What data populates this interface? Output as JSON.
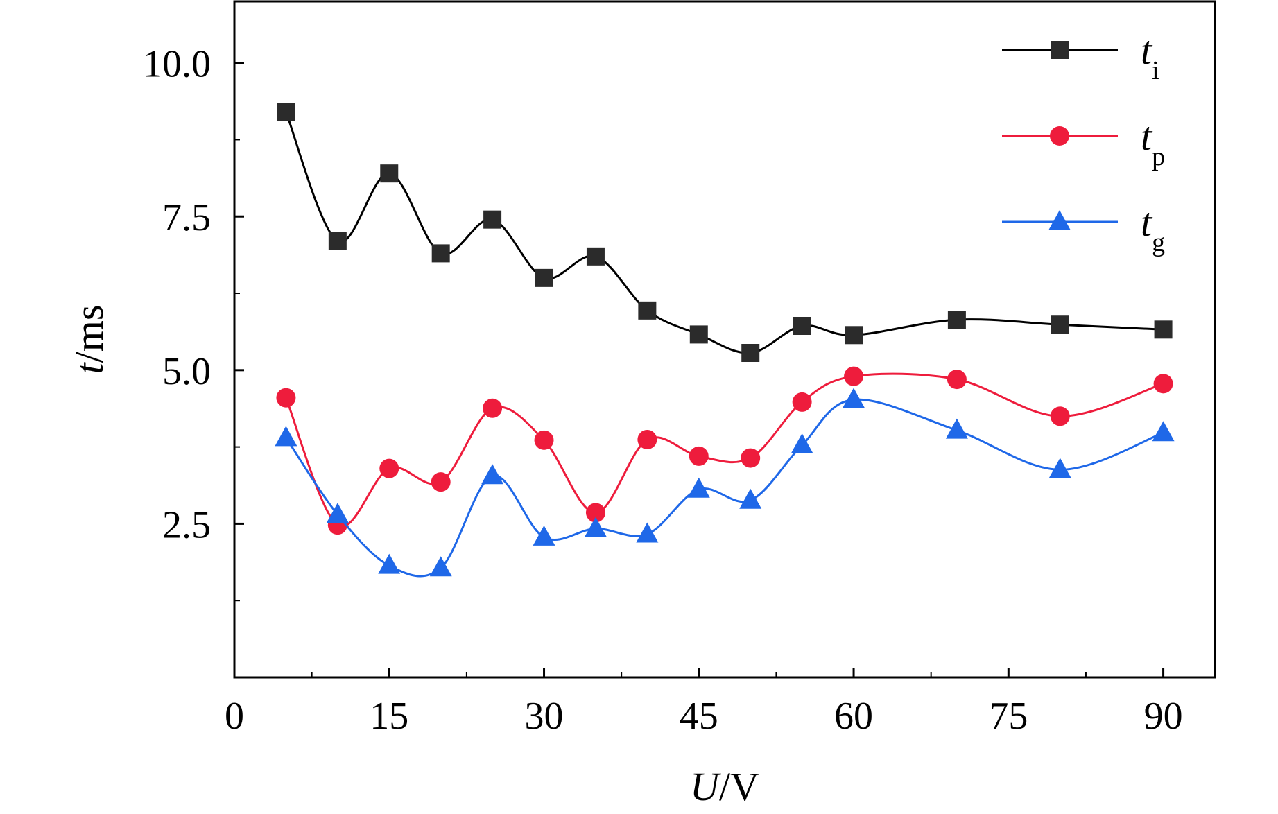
{
  "chart_data": {
    "type": "line",
    "xlabel": {
      "italic": "U",
      "rest": "/V"
    },
    "ylabel": {
      "italic": "t",
      "rest": "/ms"
    },
    "xlim": [
      0,
      95
    ],
    "ylim": [
      0,
      11
    ],
    "x_ticks": [
      0,
      15,
      30,
      45,
      60,
      75,
      90
    ],
    "x_tick_labels": [
      "0",
      "15",
      "30",
      "45",
      "60",
      "75",
      "90"
    ],
    "y_ticks": [
      2.5,
      5.0,
      7.5,
      10.0
    ],
    "y_tick_labels": [
      "2.5",
      "5.0",
      "7.5",
      "10.0"
    ],
    "grid": false,
    "legend_position": "top-right",
    "x": [
      5,
      10,
      15,
      20,
      25,
      30,
      35,
      40,
      45,
      50,
      55,
      60,
      70,
      80,
      90
    ],
    "series": [
      {
        "name": "t_i",
        "label_main": "t",
        "label_sub": "i",
        "marker": "square",
        "color": "#2b2b2b",
        "line_color": "#000000",
        "values": [
          9.2,
          7.1,
          8.2,
          6.9,
          7.45,
          6.5,
          6.85,
          5.97,
          5.58,
          5.28,
          5.72,
          5.57,
          5.82,
          5.74,
          5.66
        ]
      },
      {
        "name": "t_p",
        "label_main": "t",
        "label_sub": "p",
        "marker": "circle",
        "color": "#ee1c3c",
        "line_color": "#ee1c3c",
        "values": [
          4.55,
          2.48,
          3.4,
          3.18,
          4.38,
          3.86,
          2.68,
          3.87,
          3.6,
          3.57,
          4.48,
          4.9,
          4.85,
          4.25,
          4.78
        ]
      },
      {
        "name": "t_g",
        "label_main": "t",
        "label_sub": "g",
        "marker": "triangle",
        "color": "#1f68e8",
        "line_color": "#1f68e8",
        "values": [
          3.9,
          2.65,
          1.82,
          1.78,
          3.28,
          2.28,
          2.42,
          2.33,
          3.06,
          2.88,
          3.78,
          4.52,
          4.02,
          3.38,
          3.98
        ]
      }
    ]
  }
}
